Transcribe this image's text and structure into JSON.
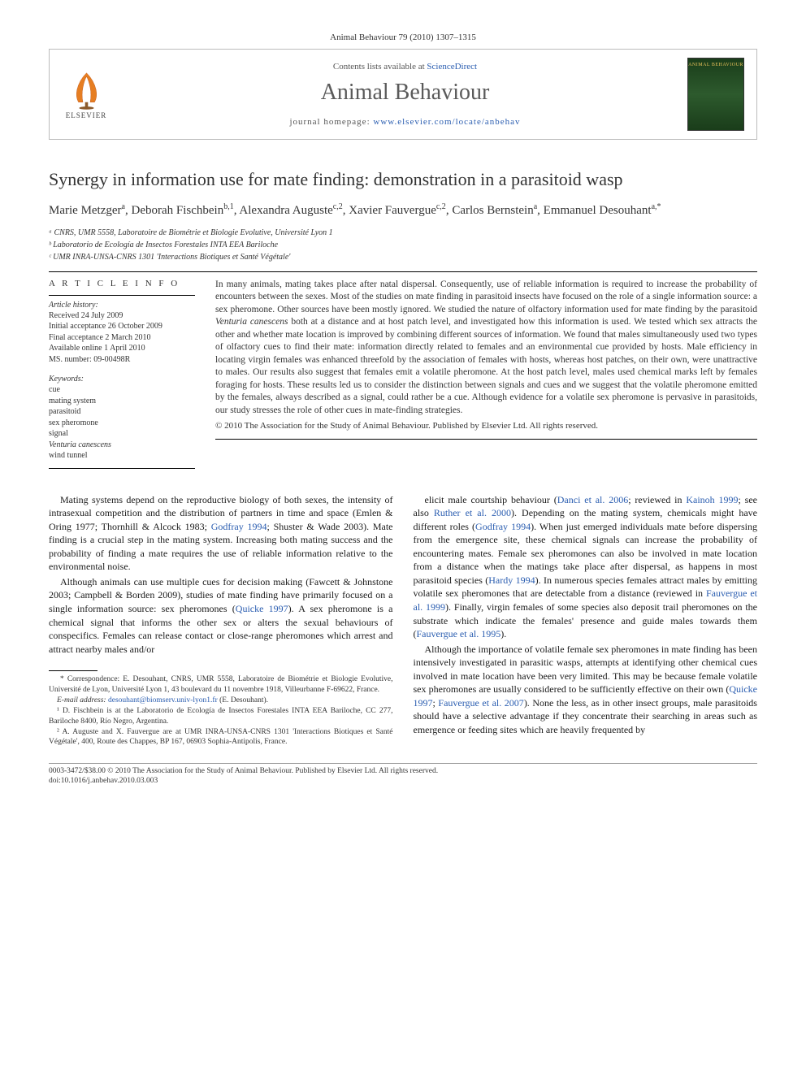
{
  "header": {
    "citation": "Animal Behaviour 79 (2010) 1307–1315",
    "contents_prefix": "Contents lists available at ",
    "contents_link": "ScienceDirect",
    "journal_name": "Animal Behaviour",
    "homepage_prefix": "journal homepage: ",
    "homepage_link": "www.elsevier.com/locate/anbehav",
    "publisher_label": "ELSEVIER",
    "cover_label": "ANIMAL BEHAVIOUR"
  },
  "article": {
    "title": "Synergy in information use for mate finding: demonstration in a parasitoid wasp",
    "authors_html": "Marie Metzger<sup>a</sup>, Deborah Fischbein<sup>b,1</sup>, Alexandra Auguste<sup>c,2</sup>, Xavier Fauvergue<sup>c,2</sup>, Carlos Bernstein<sup>a</sup>, Emmanuel Desouhant<sup>a,*</sup>",
    "affiliations": [
      "ᵃ CNRS, UMR 5558, Laboratoire de Biométrie et Biologie Evolutive, Université Lyon 1",
      "ᵇ Laboratorio de Ecología de Insectos Forestales INTA EEA Bariloche",
      "ᶜ UMR INRA-UNSA-CNRS 1301 'Interactions Biotiques et Santé Végétale'"
    ]
  },
  "info": {
    "heading": "A R T I C L E   I N F O",
    "history_head": "Article history:",
    "history": [
      "Received 24 July 2009",
      "Initial acceptance 26 October 2009",
      "Final acceptance 2 March 2010",
      "Available online 1 April 2010",
      "MS. number: 09-00498R"
    ],
    "keywords_head": "Keywords:",
    "keywords": [
      "cue",
      "mating system",
      "parasitoid",
      "sex pheromone",
      "signal",
      "Venturia canescens",
      "wind tunnel"
    ]
  },
  "abstract": {
    "text": "In many animals, mating takes place after natal dispersal. Consequently, use of reliable information is required to increase the probability of encounters between the sexes. Most of the studies on mate finding in parasitoid insects have focused on the role of a single information source: a sex pheromone. Other sources have been mostly ignored. We studied the nature of olfactory information used for mate finding by the parasitoid Venturia canescens both at a distance and at host patch level, and investigated how this information is used. We tested which sex attracts the other and whether mate location is improved by combining different sources of information. We found that males simultaneously used two types of olfactory cues to find their mate: information directly related to females and an environmental cue provided by hosts. Male efficiency in locating virgin females was enhanced threefold by the association of females with hosts, whereas host patches, on their own, were unattractive to males. Our results also suggest that females emit a volatile pheromone. At the host patch level, males used chemical marks left by females foraging for hosts. These results led us to consider the distinction between signals and cues and we suggest that the volatile pheromone emitted by the females, always described as a signal, could rather be a cue. Although evidence for a volatile sex pheromone is pervasive in parasitoids, our study stresses the role of other cues in mate-finding strategies.",
    "copyright": "© 2010 The Association for the Study of Animal Behaviour. Published by Elsevier Ltd. All rights reserved."
  },
  "body": {
    "left": [
      "Mating systems depend on the reproductive biology of both sexes, the intensity of intrasexual competition and the distribution of partners in time and space (Emlen & Oring 1977; Thornhill & Alcock 1983; Godfray 1994; Shuster & Wade 2003). Mate finding is a crucial step in the mating system. Increasing both mating success and the probability of finding a mate requires the use of reliable information relative to the environmental noise.",
      "Although animals can use multiple cues for decision making (Fawcett & Johnstone 2003; Campbell & Borden 2009), studies of mate finding have primarily focused on a single information source: sex pheromones (Quicke 1997). A sex pheromone is a chemical signal that informs the other sex or alters the sexual behaviours of conspecifics. Females can release contact or close-range pheromones which arrest and attract nearby males and/or"
    ],
    "right": [
      "elicit male courtship behaviour (Danci et al. 2006; reviewed in Kainoh 1999; see also Ruther et al. 2000). Depending on the mating system, chemicals might have different roles (Godfray 1994). When just emerged individuals mate before dispersing from the emergence site, these chemical signals can increase the probability of encountering mates. Female sex pheromones can also be involved in mate location from a distance when the matings take place after dispersal, as happens in most parasitoid species (Hardy 1994). In numerous species females attract males by emitting volatile sex pheromones that are detectable from a distance (reviewed in Fauvergue et al. 1999). Finally, virgin females of some species also deposit trail pheromones on the substrate which indicate the females' presence and guide males towards them (Fauvergue et al. 1995).",
      "Although the importance of volatile female sex pheromones in mate finding has been intensively investigated in parasitic wasps, attempts at identifying other chemical cues involved in mate location have been very limited. This may be because female volatile sex pheromones are usually considered to be sufficiently effective on their own (Quicke 1997; Fauvergue et al. 2007). None the less, as in other insect groups, male parasitoids should have a selective advantage if they concentrate their searching in areas such as emergence or feeding sites which are heavily frequented by"
    ]
  },
  "footnotes": {
    "items": [
      "* Correspondence: E. Desouhant, CNRS, UMR 5558, Laboratoire de Biométrie et Biologie Evolutive, Université de Lyon, Université Lyon 1, 43 boulevard du 11 novembre 1918, Villeurbanne F-69622, France.",
      "E-mail address: desouhant@biomserv.univ-lyon1.fr (E. Desouhant).",
      "¹ D. Fischbein is at the Laboratorio de Ecología de Insectos Forestales INTA EEA Bariloche, CC 277, Bariloche 8400, Río Negro, Argentina.",
      "² A. Auguste and X. Fauvergue are at UMR INRA-UNSA-CNRS 1301 'Interactions Biotiques et Santé Végétale', 400, Route des Chappes, BP 167, 06903 Sophia-Antipolis, France."
    ]
  },
  "doi": {
    "line1": "0003-3472/$38.00 © 2010 The Association for the Study of Animal Behaviour. Published by Elsevier Ltd. All rights reserved.",
    "line2": "doi:10.1016/j.anbehav.2010.03.003"
  },
  "colors": {
    "link": "#2a5db0",
    "text": "#1a1a1a",
    "muted": "#555",
    "border": "#bbb"
  }
}
